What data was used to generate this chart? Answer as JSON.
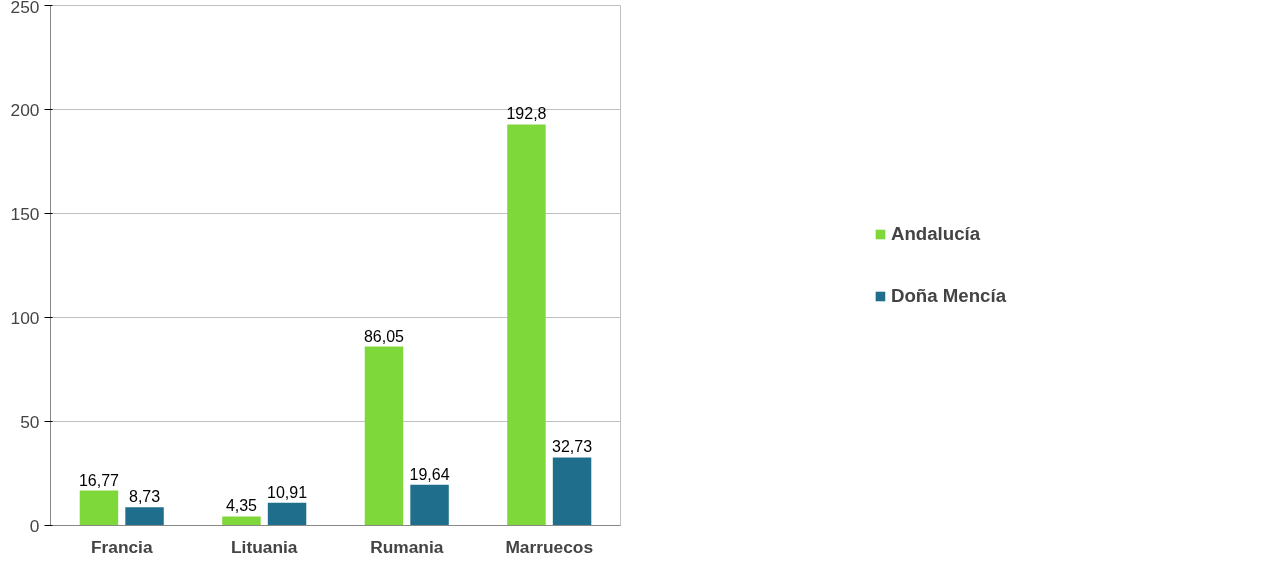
{
  "chart_data": {
    "type": "bar",
    "categories": [
      "Francia",
      "Lituania",
      "Rumania",
      "Marruecos"
    ],
    "series": [
      {
        "name": "Andalucía",
        "color": "#7fd83a",
        "values": [
          16.77,
          4.35,
          86.05,
          192.8
        ],
        "value_labels": [
          "16,77",
          "4,35",
          "86,05",
          "192,8"
        ]
      },
      {
        "name": "Doña Mencía",
        "color": "#1f6f8c",
        "values": [
          8.73,
          10.91,
          19.64,
          32.73
        ],
        "value_labels": [
          "8,73",
          "10,91",
          "19,64",
          "32,73"
        ]
      }
    ],
    "ylim": [
      0,
      250
    ],
    "yticks": [
      0,
      50,
      100,
      150,
      200,
      250
    ],
    "grid": "y",
    "legend": "right"
  }
}
